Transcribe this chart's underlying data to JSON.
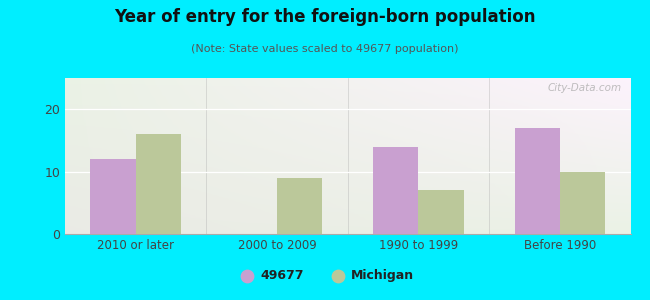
{
  "title": "Year of entry for the foreign-born population",
  "subtitle": "(Note: State values scaled to 49677 population)",
  "categories": [
    "2010 or later",
    "2000 to 2009",
    "1990 to 1999",
    "Before 1990"
  ],
  "values_49677": [
    12,
    0,
    14,
    17
  ],
  "values_michigan": [
    16,
    9,
    7,
    10
  ],
  "bar_color_49677": "#c9a0d0",
  "bar_color_michigan": "#bbc89a",
  "background_outer": "#00eeff",
  "ylim": [
    0,
    25
  ],
  "yticks": [
    0,
    10,
    20
  ],
  "bar_width": 0.32,
  "legend_label_1": "49677",
  "legend_label_2": "Michigan",
  "watermark": "City-Data.com"
}
